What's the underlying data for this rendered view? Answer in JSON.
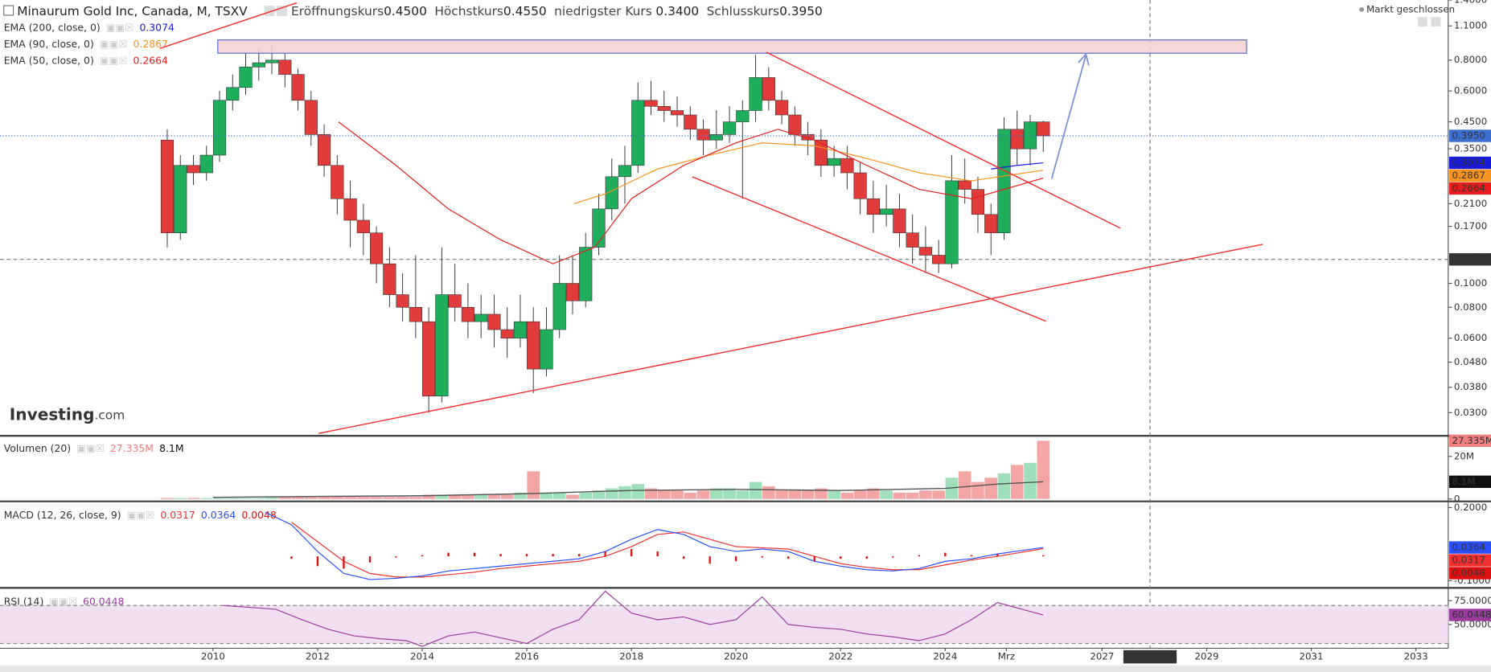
{
  "header": {
    "title": "Minaurum Gold Inc, Canada, M, TSXV",
    "ohlc": [
      {
        "label": "Eröffnungskurs",
        "value": "0.4500"
      },
      {
        "label": "Höchstkurs",
        "value": "0.4550"
      },
      {
        "label": "niedrigster Kurs",
        "value": "0.3400"
      },
      {
        "label": "Schlusskurs",
        "value": "0.3950"
      }
    ],
    "status": "Markt geschlossen",
    "logo": "Investing",
    "logo_suffix": ".com"
  },
  "chart_data": [
    {
      "type": "candlestick",
      "log_scale": true,
      "grid": false,
      "xlim": [
        2005.927,
        2033.618
      ],
      "ylim": [
        0.0245,
        1.4
      ],
      "yticks": [
        {
          "value": 0.03,
          "label": "0.0300"
        },
        {
          "value": 0.038,
          "label": "0.0380"
        },
        {
          "value": 0.048,
          "label": "0.0480"
        },
        {
          "value": 0.06,
          "label": "0.0600"
        },
        {
          "value": 0.08,
          "label": "0.0800"
        },
        {
          "value": 0.1,
          "label": "0.1000"
        },
        {
          "value": 0.17,
          "label": "0.1700"
        },
        {
          "value": 0.21,
          "label": "0.2100"
        },
        {
          "value": 0.35,
          "label": "0.3500"
        },
        {
          "value": 0.45,
          "label": "0.4500"
        },
        {
          "value": 0.6,
          "label": "0.6000"
        },
        {
          "value": 0.8,
          "label": "0.8000"
        },
        {
          "value": 1.1,
          "label": "1.1000"
        },
        {
          "value": 1.4,
          "label": "1.4000"
        }
      ],
      "up_color": "#1fae5b",
      "down_color": "#e23b3b",
      "last_color": "#3d6fd1",
      "x": [
        2009.125,
        2009.375,
        2009.625,
        2009.875,
        2010.125,
        2010.375,
        2010.625,
        2010.875,
        2011.125,
        2011.375,
        2011.625,
        2011.875,
        2012.125,
        2012.375,
        2012.625,
        2012.875,
        2013.125,
        2013.375,
        2013.625,
        2013.875,
        2014.125,
        2014.375,
        2014.625,
        2014.875,
        2015.125,
        2015.375,
        2015.625,
        2015.875,
        2016.125,
        2016.375,
        2016.625,
        2016.875,
        2017.125,
        2017.375,
        2017.625,
        2017.875,
        2018.125,
        2018.375,
        2018.625,
        2018.875,
        2019.125,
        2019.375,
        2019.625,
        2019.875,
        2020.125,
        2020.375,
        2020.625,
        2020.875,
        2021.125,
        2021.375,
        2021.625,
        2021.875,
        2022.125,
        2022.375,
        2022.625,
        2022.875,
        2023.125,
        2023.375,
        2023.625,
        2023.875,
        2024.125,
        2024.375,
        2024.625,
        2024.875,
        2025.125,
        2025.375,
        2025.625,
        2025.875
      ],
      "candles": [
        [
          0.38,
          0.42,
          0.14,
          0.16
        ],
        [
          0.16,
          0.33,
          0.15,
          0.3
        ],
        [
          0.3,
          0.33,
          0.25,
          0.28
        ],
        [
          0.28,
          0.36,
          0.26,
          0.33
        ],
        [
          0.33,
          0.6,
          0.31,
          0.55
        ],
        [
          0.55,
          0.7,
          0.5,
          0.62
        ],
        [
          0.62,
          0.85,
          0.58,
          0.75
        ],
        [
          0.75,
          0.88,
          0.66,
          0.78
        ],
        [
          0.78,
          0.92,
          0.7,
          0.8
        ],
        [
          0.8,
          0.85,
          0.62,
          0.7
        ],
        [
          0.7,
          0.74,
          0.5,
          0.55
        ],
        [
          0.55,
          0.6,
          0.36,
          0.4
        ],
        [
          0.4,
          0.44,
          0.27,
          0.3
        ],
        [
          0.3,
          0.33,
          0.19,
          0.22
        ],
        [
          0.22,
          0.26,
          0.14,
          0.18
        ],
        [
          0.18,
          0.21,
          0.13,
          0.16
        ],
        [
          0.16,
          0.17,
          0.1,
          0.12
        ],
        [
          0.12,
          0.14,
          0.08,
          0.09
        ],
        [
          0.09,
          0.11,
          0.07,
          0.08
        ],
        [
          0.08,
          0.13,
          0.06,
          0.07
        ],
        [
          0.07,
          0.08,
          0.03,
          0.035
        ],
        [
          0.035,
          0.14,
          0.033,
          0.09
        ],
        [
          0.09,
          0.12,
          0.07,
          0.08
        ],
        [
          0.08,
          0.1,
          0.06,
          0.07
        ],
        [
          0.07,
          0.09,
          0.06,
          0.075
        ],
        [
          0.075,
          0.09,
          0.055,
          0.065
        ],
        [
          0.065,
          0.08,
          0.05,
          0.06
        ],
        [
          0.06,
          0.09,
          0.055,
          0.07
        ],
        [
          0.07,
          0.08,
          0.036,
          0.045
        ],
        [
          0.045,
          0.08,
          0.042,
          0.065
        ],
        [
          0.065,
          0.13,
          0.06,
          0.1
        ],
        [
          0.1,
          0.13,
          0.075,
          0.085
        ],
        [
          0.085,
          0.16,
          0.08,
          0.14
        ],
        [
          0.14,
          0.23,
          0.13,
          0.2
        ],
        [
          0.2,
          0.32,
          0.18,
          0.27
        ],
        [
          0.27,
          0.36,
          0.21,
          0.3
        ],
        [
          0.3,
          0.65,
          0.28,
          0.55
        ],
        [
          0.55,
          0.66,
          0.48,
          0.52
        ],
        [
          0.52,
          0.6,
          0.45,
          0.5
        ],
        [
          0.5,
          0.57,
          0.43,
          0.48
        ],
        [
          0.48,
          0.52,
          0.38,
          0.42
        ],
        [
          0.42,
          0.46,
          0.33,
          0.38
        ],
        [
          0.38,
          0.5,
          0.35,
          0.4
        ],
        [
          0.4,
          0.52,
          0.37,
          0.45
        ],
        [
          0.45,
          0.55,
          0.22,
          0.5
        ],
        [
          0.5,
          0.84,
          0.45,
          0.68
        ],
        [
          0.68,
          0.75,
          0.5,
          0.55
        ],
        [
          0.55,
          0.6,
          0.44,
          0.48
        ],
        [
          0.48,
          0.52,
          0.36,
          0.4
        ],
        [
          0.4,
          0.45,
          0.33,
          0.38
        ],
        [
          0.38,
          0.42,
          0.27,
          0.3
        ],
        [
          0.3,
          0.36,
          0.27,
          0.32
        ],
        [
          0.32,
          0.36,
          0.24,
          0.28
        ],
        [
          0.28,
          0.31,
          0.19,
          0.22
        ],
        [
          0.22,
          0.26,
          0.16,
          0.19
        ],
        [
          0.19,
          0.25,
          0.17,
          0.2
        ],
        [
          0.2,
          0.23,
          0.14,
          0.16
        ],
        [
          0.16,
          0.19,
          0.12,
          0.14
        ],
        [
          0.14,
          0.17,
          0.11,
          0.13
        ],
        [
          0.13,
          0.15,
          0.11,
          0.12
        ],
        [
          0.12,
          0.33,
          0.115,
          0.26
        ],
        [
          0.26,
          0.32,
          0.21,
          0.24
        ],
        [
          0.24,
          0.27,
          0.16,
          0.19
        ],
        [
          0.19,
          0.21,
          0.13,
          0.16
        ],
        [
          0.16,
          0.47,
          0.15,
          0.42
        ],
        [
          0.42,
          0.5,
          0.3,
          0.35
        ],
        [
          0.35,
          0.48,
          0.3,
          0.45
        ],
        [
          0.45,
          0.455,
          0.34,
          0.395
        ]
      ],
      "series": [
        {
          "name": "EMA (200, close, 0)",
          "color": "#1a1adb",
          "x": [
            2024.875,
            2025.375,
            2025.875
          ],
          "values": [
            0.29,
            0.3,
            0.3074
          ],
          "last_label": "0.3074"
        },
        {
          "name": "EMA (90, close, 0)",
          "color": "#f7931e",
          "x": [
            2016.9,
            2017.5,
            2018.5,
            2019.5,
            2020.5,
            2021.5,
            2022.5,
            2023.5,
            2024.5,
            2025.875
          ],
          "values": [
            0.21,
            0.23,
            0.29,
            0.33,
            0.37,
            0.36,
            0.32,
            0.28,
            0.26,
            0.2867
          ],
          "last_label": "0.2867"
        },
        {
          "name": "EMA (50, close, 0)",
          "color": "#e81c1c",
          "x": [
            2012.4,
            2013.5,
            2014.5,
            2015.5,
            2016.5,
            2017.3,
            2018.0,
            2019.0,
            2020.0,
            2020.8,
            2021.5,
            2022.5,
            2023.5,
            2024.5,
            2025.875
          ],
          "values": [
            0.45,
            0.3,
            0.2,
            0.15,
            0.12,
            0.14,
            0.22,
            0.3,
            0.37,
            0.42,
            0.38,
            0.3,
            0.24,
            0.22,
            0.2664
          ],
          "last_label": "0.2664"
        }
      ],
      "crosshair": {
        "x": {
          "value": 2027.917,
          "label": "2027-12-01"
        },
        "y": {
          "value": 0.125,
          "label": "0.1250"
        }
      }
    },
    {
      "type": "bar",
      "label": "Volumen (20)",
      "xlim": [
        2005.927,
        2033.618
      ],
      "ylim": [
        0,
        29
      ],
      "yticks": [
        0,
        {
          "value": 20,
          "label": "20M"
        }
      ],
      "up_color": "#9fdfb9",
      "down_color": "#f4a6a6",
      "last_color": "#f08080",
      "values": [
        0.5,
        0.5,
        0.5,
        0.5,
        0.5,
        0.5,
        0.5,
        0.5,
        1,
        1,
        1,
        1,
        1,
        1,
        1,
        1,
        1,
        1,
        1,
        1,
        2,
        2,
        2,
        2,
        2,
        2,
        2,
        3,
        13,
        3,
        3,
        2,
        3,
        4,
        5,
        6,
        7,
        5,
        4,
        4,
        3,
        4,
        5,
        5,
        4,
        8,
        6,
        4,
        4,
        4,
        5,
        4,
        3,
        4,
        5,
        4,
        3,
        3,
        4,
        4,
        10,
        13,
        8,
        10,
        12,
        16,
        17,
        27.335
      ],
      "last_label": "27.335M",
      "series": [
        {
          "color": "#555555",
          "x": [
            2010,
            2012,
            2014,
            2016,
            2018,
            2020,
            2022,
            2024,
            2025,
            2025.875
          ],
          "values": [
            0.8,
            1.2,
            1.5,
            2.5,
            4,
            4.5,
            4,
            5,
            7,
            8.1
          ],
          "last_label": "8.1M"
        }
      ]
    },
    {
      "type": "line",
      "label": "MACD (12, 26, close, 9)",
      "xlim": [
        2005.927,
        2033.618
      ],
      "ylim": [
        -0.1234,
        0.2195
      ],
      "yticks": [
        {
          "value": -0.1,
          "label": "-0.1000"
        },
        {
          "value": 0.2,
          "label": "0.2000"
        }
      ],
      "x": [
        2011.0,
        2011.5,
        2012.0,
        2012.5,
        2013.0,
        2013.5,
        2014.0,
        2014.5,
        2015.0,
        2015.5,
        2016.0,
        2016.5,
        2017.0,
        2017.5,
        2018.0,
        2018.5,
        2019.0,
        2019.5,
        2020.0,
        2020.5,
        2021.0,
        2021.5,
        2022.0,
        2022.5,
        2023.0,
        2023.5,
        2024.0,
        2024.5,
        2025.0,
        2025.875
      ],
      "series": [
        {
          "color": "#f23030",
          "values": [
            null,
            0.14,
            0.06,
            -0.02,
            -0.07,
            -0.085,
            -0.085,
            -0.075,
            -0.065,
            -0.05,
            -0.04,
            -0.03,
            -0.02,
            0.0,
            0.04,
            0.09,
            0.1,
            0.07,
            0.04,
            0.035,
            0.03,
            0.0,
            -0.03,
            -0.045,
            -0.055,
            -0.055,
            -0.035,
            -0.015,
            0.0,
            0.0317
          ],
          "last_label": "0.0317"
        },
        {
          "color": "#2a4fff",
          "values": [
            0.18,
            0.13,
            0.02,
            -0.07,
            -0.095,
            -0.09,
            -0.08,
            -0.06,
            -0.05,
            -0.04,
            -0.03,
            -0.02,
            -0.01,
            0.02,
            0.07,
            0.11,
            0.09,
            0.04,
            0.02,
            0.03,
            0.02,
            -0.02,
            -0.04,
            -0.055,
            -0.06,
            -0.05,
            -0.02,
            -0.01,
            0.01,
            0.0364
          ],
          "last_label": "0.0364"
        },
        {
          "color": "#e01010",
          "style": "histogram",
          "values": [
            null,
            -0.01,
            -0.04,
            -0.05,
            -0.025,
            -0.005,
            0.005,
            0.015,
            0.015,
            0.01,
            0.01,
            0.01,
            0.01,
            0.02,
            0.03,
            0.02,
            -0.01,
            -0.03,
            -0.02,
            -0.005,
            -0.01,
            -0.02,
            -0.01,
            -0.01,
            -0.005,
            0.005,
            0.015,
            0.005,
            0.01,
            0.0048
          ],
          "last_label": "0.0048"
        }
      ]
    },
    {
      "type": "line",
      "label": "RSI (14)",
      "xlim": [
        2005.927,
        2033.618
      ],
      "ylim": [
        26,
        87
      ],
      "yticks": [
        {
          "value": 50,
          "label": "50.0000"
        },
        {
          "value": 75,
          "label": "75.0000"
        }
      ],
      "band": [
        30,
        70
      ],
      "band_color": "#f1e0f1",
      "x": [
        2010.2,
        2010.7,
        2011.2,
        2011.7,
        2012.2,
        2012.7,
        2013.2,
        2013.7,
        2014.0,
        2014.5,
        2015.0,
        2015.5,
        2016.0,
        2016.5,
        2017.0,
        2017.5,
        2018.0,
        2018.5,
        2019.0,
        2019.5,
        2020.0,
        2020.5,
        2021.0,
        2021.5,
        2022.0,
        2022.5,
        2023.0,
        2023.5,
        2024.0,
        2024.5,
        2025.0,
        2025.875
      ],
      "series": [
        {
          "color": "#9c3ca0",
          "values": [
            70,
            68,
            66,
            55,
            45,
            38,
            35,
            33,
            27,
            38,
            42,
            36,
            30,
            45,
            55,
            85,
            62,
            55,
            58,
            50,
            55,
            79,
            50,
            47,
            45,
            40,
            37,
            33,
            40,
            55,
            73,
            60.0448
          ],
          "last_label": "60.0448"
        }
      ],
      "xticks": [
        2010,
        2012,
        2014,
        2016,
        2018,
        2020,
        2022,
        2024,
        {
          "value": 2025.17,
          "label": "Mrz"
        },
        2027,
        2029,
        2031,
        2033
      ]
    }
  ]
}
